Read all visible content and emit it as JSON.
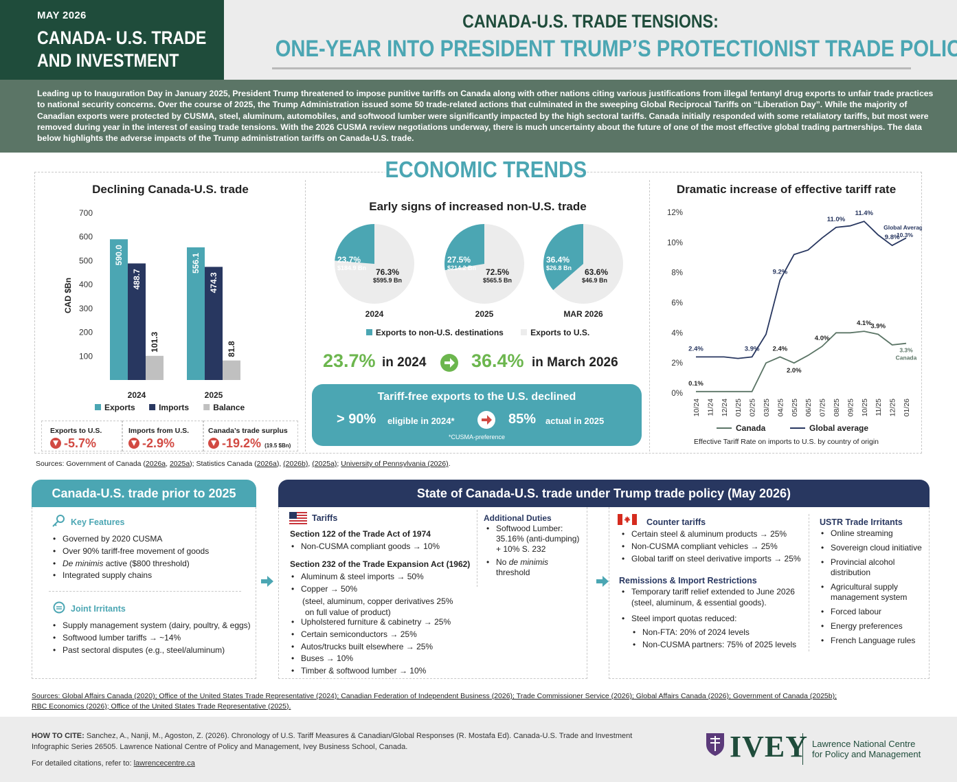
{
  "header": {
    "date": "MAY 2026",
    "series_line1": "CANADA- U.S. TRADE",
    "series_line2": "AND INVESTMENT",
    "title_line1": "CANADA-U.S. TRADE TENSIONS:",
    "title_line2": "ONE-YEAR INTO PRESIDENT TRUMP’S PROTECTIONIST TRADE POLICY"
  },
  "intro": "Leading up to Inauguration Day in January 2025, President Trump threatened to impose punitive tariffs on Canada along with other nations citing various justifications from illegal fentanyl drug exports to unfair trade practices to national security concerns. Over the course of 2025, the Trump Administration issued some 50 trade-related actions that culminated in the sweeping Global Reciprocal Tariffs on “Liberation Day”. While the majority of Canadian exports were protected by CUSMA, steel, aluminum, automobiles, and softwood lumber were significantly impacted by the high sectoral tariffs. Canada initially responded with some retaliatory tariffs, but most were removed during year in the interest of easing trade tensions. With the 2026 CUSMA review negotiations underway, there is much uncertainty about the future of one of the most effective global trading partnerships.  The data below highlights the adverse impacts of the Trump administration tariffs on Canada-U.S. trade.",
  "economic_trends_title": "ECONOMIC TRENDS",
  "colors": {
    "teal": "#4ba6b3",
    "navy": "#283760",
    "gray": "#c0c0c0",
    "green": "#1f4c3b",
    "red": "#d24a43",
    "light_green": "#6cb64e"
  },
  "chart_data": [
    {
      "type": "bar",
      "title": "Declining Canada-U.S. trade",
      "ylabel": "CAD $Bn",
      "ylim": [
        0,
        700
      ],
      "yticks": [
        100,
        200,
        300,
        400,
        500,
        600,
        700
      ],
      "categories": [
        "2024",
        "2025"
      ],
      "series": [
        {
          "name": "Exports",
          "values": [
            590.0,
            556.1
          ],
          "labels": [
            "590.0",
            "556.1"
          ],
          "color": "#4ba6b3"
        },
        {
          "name": "Imports",
          "values": [
            488.7,
            474.3
          ],
          "labels": [
            "488.7",
            "474.3"
          ],
          "color": "#283760"
        },
        {
          "name": "Balance",
          "values": [
            101.3,
            81.8
          ],
          "labels": [
            "101.3",
            "81.8"
          ],
          "color": "#c0c0c0"
        }
      ]
    },
    {
      "type": "pie",
      "title": "Early signs of increased non-U.S. trade",
      "pies": [
        {
          "label": "2024",
          "non_us_pct": 23.7,
          "non_us_pct_label": "23.7%",
          "non_us_value": "$184.9 Bn",
          "us_pct_label": "76.3%",
          "us_value": "$595.9 Bn"
        },
        {
          "label": "2025",
          "non_us_pct": 27.5,
          "non_us_pct_label": "27.5%",
          "non_us_value": "$214.2 Bn",
          "us_pct_label": "72.5%",
          "us_value": "$565.5 Bn"
        },
        {
          "label": "MAR 2026",
          "non_us_pct": 36.4,
          "non_us_pct_label": "36.4%",
          "non_us_value": "$26.8 Bn",
          "us_pct_label": "63.6%",
          "us_value": "$46.9 Bn"
        }
      ],
      "legend": [
        "Exports to non-U.S. destinations",
        "Exports to U.S."
      ]
    },
    {
      "type": "line",
      "title": "Dramatic increase of effective tariff rate",
      "caption": "Effective Tariff Rate on imports to U.S. by country of origin",
      "x": [
        "10/24",
        "11/24",
        "12/24",
        "01/25",
        "02/25",
        "03/25",
        "04/25",
        "05/25",
        "06/25",
        "07/25",
        "08/25",
        "09/25",
        "10/25",
        "11/25",
        "12/25",
        "01/26"
      ],
      "ylim": [
        0,
        12
      ],
      "yticks": [
        "0%",
        "2%",
        "4%",
        "6%",
        "8%",
        "10%",
        "12%"
      ],
      "series": [
        {
          "name": "Canada",
          "values": [
            0.1,
            0.1,
            0.1,
            0.1,
            0.1,
            2.0,
            2.4,
            2.0,
            2.5,
            3.1,
            4.0,
            4.0,
            4.1,
            3.9,
            3.2,
            3.3
          ],
          "color": "#5b7566"
        },
        {
          "name": "Global average",
          "values": [
            2.4,
            2.4,
            2.4,
            2.3,
            2.4,
            3.9,
            7.5,
            9.2,
            9.5,
            10.3,
            11.0,
            11.1,
            11.4,
            10.5,
            9.8,
            10.3
          ],
          "color": "#283760"
        }
      ],
      "annotations": {
        "global": [
          {
            "text": "2.4%",
            "i": 0
          },
          {
            "text": "3.9%",
            "i": 4
          },
          {
            "text": "9.2%",
            "i": 6
          },
          {
            "text": "11.0%",
            "i": 10
          },
          {
            "text": "11.4%",
            "i": 12
          },
          {
            "text": "9.8%",
            "i": 14
          }
        ],
        "canada": [
          {
            "text": "0.1%",
            "i": 0
          },
          {
            "text": "2.4%",
            "i": 6
          },
          {
            "text": "2.0%",
            "i": 7
          },
          {
            "text": "4.0%",
            "i": 9
          },
          {
            "text": "4.1%",
            "i": 12
          },
          {
            "text": "3.9%",
            "i": 13
          }
        ],
        "global_end_label": "Global Average",
        "global_end_value": "10.3%",
        "canada_end_value": "3.3%",
        "canada_end_label": "Canada"
      }
    }
  ],
  "stats": [
    {
      "label": "Exports to U.S.",
      "value": "-5.7%"
    },
    {
      "label": "Imports from U.S.",
      "value": "-2.9%"
    },
    {
      "label": "Canada’s trade surplus",
      "value": "-19.2%",
      "note": "(19.5 $Bn)"
    }
  ],
  "growth": {
    "left_value": "23.7%",
    "left_text": "in 2024",
    "right_value": "36.4%",
    "right_text": "in March 2026"
  },
  "tariff_free": {
    "title": "Tariff-free exports to the U.S. declined",
    "left_value": "> 90%",
    "left_text": "eligible in 2024*",
    "right_value": "85%",
    "right_text": "actual in 2025",
    "note": "*CUSMA-preference"
  },
  "sources_top": {
    "prefix": "Sources: Government of Canada (",
    "l1": "2026a",
    "sep1": ", ",
    "l2": "2025a",
    "mid1": "); Statistics Canada (",
    "l3": "2026a",
    "sep2": "), ",
    "l4": "(2026b)",
    "sep3": ", ",
    "l5": "(2025a)",
    "sep4": "; ",
    "l6": "University of Pennsylvania (2026)",
    "end": "."
  },
  "prior": {
    "title": "Canada-U.S. trade prior to 2025",
    "key_features_h": "Key Features",
    "key_features": [
      "Governed by 2020 CUSMA",
      "Over 90% tariff-free movement of goods",
      "active ($800 threshold)",
      " Integrated supply chains"
    ],
    "de_minimis": "De minimis",
    "joint_h": "Joint Irritants",
    "joint": [
      "Supply management system (dairy, poultry, & eggs)",
      "Softwood lumber tariffs → ~14%",
      "Past sectoral disputes (e.g., steel/aluminum)"
    ]
  },
  "state": {
    "title": "State of Canada-U.S. trade under Trump trade policy (May 2026)",
    "tariffs_h": "Tariffs",
    "s122_h": "Section 122 of the Trade Act of 1974",
    "s122": [
      "Non-CUSMA compliant goods  → 10%"
    ],
    "s232_h": "Section 232 of the Trade Expansion Act (1962)",
    "s232_a": [
      "Aluminum & steel imports  → 50%",
      "Copper → 50%"
    ],
    "s232_copper_note1": "(steel, aluminum, copper derivatives 25%",
    "s232_copper_note2": "on full value of product)",
    "s232_b": [
      "Upholstered furniture & cabinetry → 25%",
      "Certain semiconductors → 25%",
      "Autos/trucks built elsewhere → 25%",
      "Buses → 10%",
      "Timber & softwood lumber → 10%"
    ],
    "add_h": "Additional Duties",
    "add1_a": "Softwood Lumber:",
    "add1_b": "35.16% (anti-dumping)",
    "add1_c": "+ 10% S. 232",
    "add2_a": "No ",
    "add2_it": "de minimis",
    "add2_b": "threshold",
    "counter_h": "Counter tariffs",
    "counter": [
      "Certain steel & aluminum products  → 25%",
      "Non-CUSMA compliant vehicles  → 25%",
      "Global tariff on steel derivative imports  → 25%"
    ],
    "rem_h": "Remissions & Import Restrictions",
    "rem1_a": "Temporary tariff relief extended to June 2026",
    "rem1_b": "(steel, aluminum, & essential goods).",
    "rem2": "Steel import quotas reduced:",
    "rem2_sub": [
      "Non-FTA: 20% of 2024 levels",
      "Non-CUSMA partners: 75% of 2025 levels"
    ],
    "ustr_h": "USTR Trade Irritants",
    "ustr": [
      "Online streaming",
      "Sovereign cloud initiative",
      "Provincial alcohol",
      "Agricultural supply",
      "Forced labour",
      "Energy preferences",
      " French Language rules"
    ],
    "ustr_cont": [
      "distribution",
      "management system"
    ]
  },
  "sources_bottom": {
    "line1": "Sources: Global Affairs Canada (2020); Office of the United States Trade Representative (2024); Canadian Federation of Independent Business (2026); Trade Commissioner Service (2026); Global Affairs Canada (2026); Government of Canada (2025b);",
    "line2": "RBC Economics (2026); Office of the United States Trade Representative (2025)."
  },
  "footer": {
    "cite_label": "HOW TO CITE:",
    "cite_text": " Sanchez, A., Nanji, M., Agoston, Z. (2026). Chronology of U.S. Tariff Measures & Canadian/Global Responses (R. Mostafa Ed). Canada-U.S. Trade and Investment",
    "cite_text2": "Infographic Series 26505. Lawrence National Centre of Policy and Management, Ivey Business School, Canada.",
    "detail_prefix": "For detailed citations, refer to: ",
    "detail_link": "lawrencecentre.ca",
    "logo_word": "IVEY",
    "centre_line1": "Lawrence National Centre",
    "centre_line2": "for Policy and Management"
  }
}
